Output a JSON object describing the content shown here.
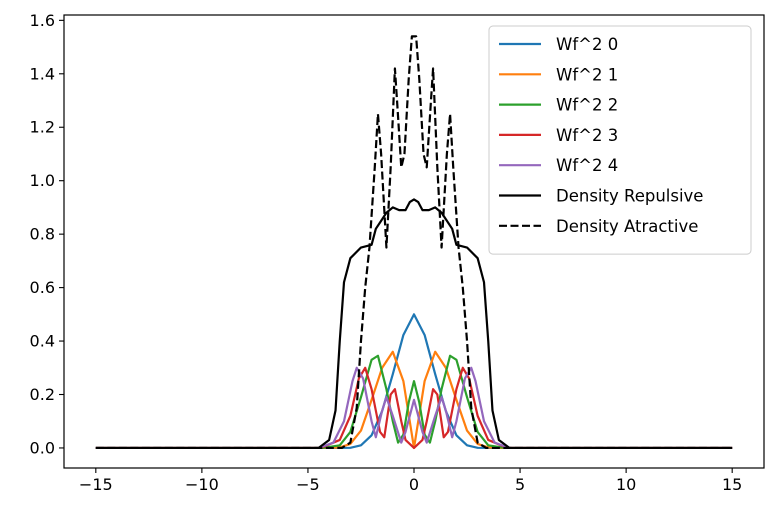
{
  "chart_data": {
    "type": "line",
    "title": "",
    "xlabel": "",
    "ylabel": "",
    "xlim": [
      -16.5,
      16.5
    ],
    "ylim": [
      -0.075,
      1.62
    ],
    "xticks": [
      -15,
      -10,
      -5,
      0,
      5,
      10,
      15
    ],
    "xtick_labels": [
      "−15",
      "−10",
      "−5",
      "0",
      "5",
      "10",
      "15"
    ],
    "yticks": [
      0.0,
      0.2,
      0.4,
      0.6,
      0.8,
      1.0,
      1.2,
      1.4,
      1.6
    ],
    "ytick_labels": [
      "0.0",
      "0.2",
      "0.4",
      "0.6",
      "0.8",
      "1.0",
      "1.2",
      "1.4",
      "1.6"
    ],
    "grid": false,
    "legend_position": "top-right",
    "x_range": [
      -15,
      15
    ],
    "series": [
      {
        "name": "Wf^2 0",
        "color": "#1f77b4",
        "style": "solid",
        "points": [
          [
            -15,
            0
          ],
          [
            -3.6,
            0
          ],
          [
            -3,
            0.0006
          ],
          [
            -2.5,
            0.0098
          ],
          [
            -2,
            0.0474
          ],
          [
            -1.5,
            0.1385
          ],
          [
            -1,
            0.2759
          ],
          [
            -0.5,
            0.4228
          ],
          [
            0,
            0.5
          ],
          [
            0.5,
            0.4228
          ],
          [
            1,
            0.2759
          ],
          [
            1.5,
            0.1385
          ],
          [
            2,
            0.0474
          ],
          [
            2.5,
            0.0098
          ],
          [
            3,
            0.0006
          ],
          [
            3.6,
            0
          ],
          [
            15,
            0
          ]
        ]
      },
      {
        "name": "Wf^2 1",
        "color": "#ff7f0e",
        "style": "solid",
        "points": [
          [
            -15,
            0
          ],
          [
            -4,
            0
          ],
          [
            -3.5,
            0.002
          ],
          [
            -3,
            0.015
          ],
          [
            -2.5,
            0.065
          ],
          [
            -2,
            0.18
          ],
          [
            -1.5,
            0.3
          ],
          [
            -1,
            0.36
          ],
          [
            -0.5,
            0.25
          ],
          [
            0,
            0
          ],
          [
            0.5,
            0.25
          ],
          [
            1,
            0.36
          ],
          [
            1.5,
            0.3
          ],
          [
            2,
            0.18
          ],
          [
            2.5,
            0.065
          ],
          [
            3,
            0.015
          ],
          [
            3.5,
            0.002
          ],
          [
            4,
            0
          ],
          [
            15,
            0
          ]
        ]
      },
      {
        "name": "Wf^2 2",
        "color": "#2ca02c",
        "style": "solid",
        "points": [
          [
            -15,
            0
          ],
          [
            -4.3,
            0
          ],
          [
            -3.5,
            0.01
          ],
          [
            -3,
            0.06
          ],
          [
            -2.5,
            0.19
          ],
          [
            -2,
            0.33
          ],
          [
            -1.7,
            0.345
          ],
          [
            -1.3,
            0.22
          ],
          [
            -1,
            0.1
          ],
          [
            -0.75,
            0.02
          ],
          [
            -0.5,
            0.05
          ],
          [
            -0.25,
            0.17
          ],
          [
            0,
            0.25
          ],
          [
            0.25,
            0.17
          ],
          [
            0.5,
            0.05
          ],
          [
            0.75,
            0.02
          ],
          [
            1,
            0.1
          ],
          [
            1.3,
            0.22
          ],
          [
            1.7,
            0.345
          ],
          [
            2,
            0.33
          ],
          [
            2.5,
            0.19
          ],
          [
            3,
            0.06
          ],
          [
            3.5,
            0.01
          ],
          [
            4.3,
            0
          ],
          [
            15,
            0
          ]
        ]
      },
      {
        "name": "Wf^2 3",
        "color": "#d62728",
        "style": "solid",
        "points": [
          [
            -15,
            0
          ],
          [
            -4.4,
            0
          ],
          [
            -3.5,
            0.03
          ],
          [
            -3,
            0.12
          ],
          [
            -2.6,
            0.26
          ],
          [
            -2.3,
            0.3
          ],
          [
            -2,
            0.22
          ],
          [
            -1.6,
            0.06
          ],
          [
            -1.4,
            0.04
          ],
          [
            -1.1,
            0.2
          ],
          [
            -0.9,
            0.22
          ],
          [
            -0.6,
            0.1
          ],
          [
            -0.4,
            0.03
          ],
          [
            0,
            0
          ],
          [
            0.4,
            0.03
          ],
          [
            0.6,
            0.1
          ],
          [
            0.9,
            0.22
          ],
          [
            1.1,
            0.2
          ],
          [
            1.4,
            0.04
          ],
          [
            1.6,
            0.06
          ],
          [
            2,
            0.22
          ],
          [
            2.3,
            0.3
          ],
          [
            2.6,
            0.26
          ],
          [
            3,
            0.12
          ],
          [
            3.5,
            0.03
          ],
          [
            4.4,
            0
          ],
          [
            15,
            0
          ]
        ]
      },
      {
        "name": "Wf^2 4",
        "color": "#9467bd",
        "style": "solid",
        "points": [
          [
            -15,
            0
          ],
          [
            -4.5,
            0
          ],
          [
            -3.8,
            0.02
          ],
          [
            -3.3,
            0.1
          ],
          [
            -2.9,
            0.25
          ],
          [
            -2.7,
            0.3
          ],
          [
            -2.4,
            0.26
          ],
          [
            -2,
            0.1
          ],
          [
            -1.8,
            0.04
          ],
          [
            -1.5,
            0.14
          ],
          [
            -1.3,
            0.19
          ],
          [
            -1,
            0.12
          ],
          [
            -0.6,
            0.02
          ],
          [
            -0.4,
            0.06
          ],
          [
            0,
            0.18
          ],
          [
            0.4,
            0.06
          ],
          [
            0.6,
            0.02
          ],
          [
            1,
            0.12
          ],
          [
            1.3,
            0.19
          ],
          [
            1.5,
            0.14
          ],
          [
            1.8,
            0.04
          ],
          [
            2,
            0.1
          ],
          [
            2.4,
            0.26
          ],
          [
            2.7,
            0.3
          ],
          [
            2.9,
            0.25
          ],
          [
            3.3,
            0.1
          ],
          [
            3.8,
            0.02
          ],
          [
            4.5,
            0
          ],
          [
            15,
            0
          ]
        ]
      },
      {
        "name": "Density Repulsive",
        "color": "#000000",
        "style": "solid",
        "points": [
          [
            -15,
            0
          ],
          [
            -4.5,
            0
          ],
          [
            -4,
            0.03
          ],
          [
            -3.7,
            0.14
          ],
          [
            -3.5,
            0.4
          ],
          [
            -3.3,
            0.62
          ],
          [
            -3,
            0.71
          ],
          [
            -2.5,
            0.75
          ],
          [
            -2,
            0.76
          ],
          [
            -1.8,
            0.82
          ],
          [
            -1.3,
            0.88
          ],
          [
            -1,
            0.9
          ],
          [
            -0.7,
            0.89
          ],
          [
            -0.4,
            0.89
          ],
          [
            -0.2,
            0.92
          ],
          [
            0,
            0.93
          ],
          [
            0.2,
            0.92
          ],
          [
            0.4,
            0.89
          ],
          [
            0.7,
            0.89
          ],
          [
            1,
            0.9
          ],
          [
            1.3,
            0.88
          ],
          [
            1.8,
            0.82
          ],
          [
            2,
            0.76
          ],
          [
            2.5,
            0.75
          ],
          [
            3,
            0.71
          ],
          [
            3.3,
            0.62
          ],
          [
            3.5,
            0.4
          ],
          [
            3.7,
            0.14
          ],
          [
            4,
            0.03
          ],
          [
            4.5,
            0
          ],
          [
            15,
            0
          ]
        ]
      },
      {
        "name": "Density Atractive",
        "color": "#000000",
        "style": "dashed",
        "points": [
          [
            -15,
            0
          ],
          [
            -3.4,
            0
          ],
          [
            -3,
            0.02
          ],
          [
            -2.7,
            0.15
          ],
          [
            -2.5,
            0.4
          ],
          [
            -2.3,
            0.6
          ],
          [
            -2.1,
            0.75
          ],
          [
            -1.85,
            1.05
          ],
          [
            -1.7,
            1.25
          ],
          [
            -1.55,
            1.1
          ],
          [
            -1.3,
            0.75
          ],
          [
            -1.1,
            1.05
          ],
          [
            -0.9,
            1.42
          ],
          [
            -0.8,
            1.3
          ],
          [
            -0.6,
            1.05
          ],
          [
            -0.45,
            1.1
          ],
          [
            -0.25,
            1.38
          ],
          [
            -0.1,
            1.54
          ],
          [
            0,
            1.54
          ],
          [
            0.1,
            1.54
          ],
          [
            0.25,
            1.38
          ],
          [
            0.45,
            1.1
          ],
          [
            0.6,
            1.05
          ],
          [
            0.8,
            1.3
          ],
          [
            0.9,
            1.42
          ],
          [
            1.1,
            1.05
          ],
          [
            1.3,
            0.75
          ],
          [
            1.55,
            1.1
          ],
          [
            1.7,
            1.25
          ],
          [
            1.85,
            1.05
          ],
          [
            2.1,
            0.75
          ],
          [
            2.3,
            0.6
          ],
          [
            2.5,
            0.4
          ],
          [
            2.7,
            0.15
          ],
          [
            3,
            0.02
          ],
          [
            3.4,
            0
          ],
          [
            15,
            0
          ]
        ]
      }
    ]
  }
}
